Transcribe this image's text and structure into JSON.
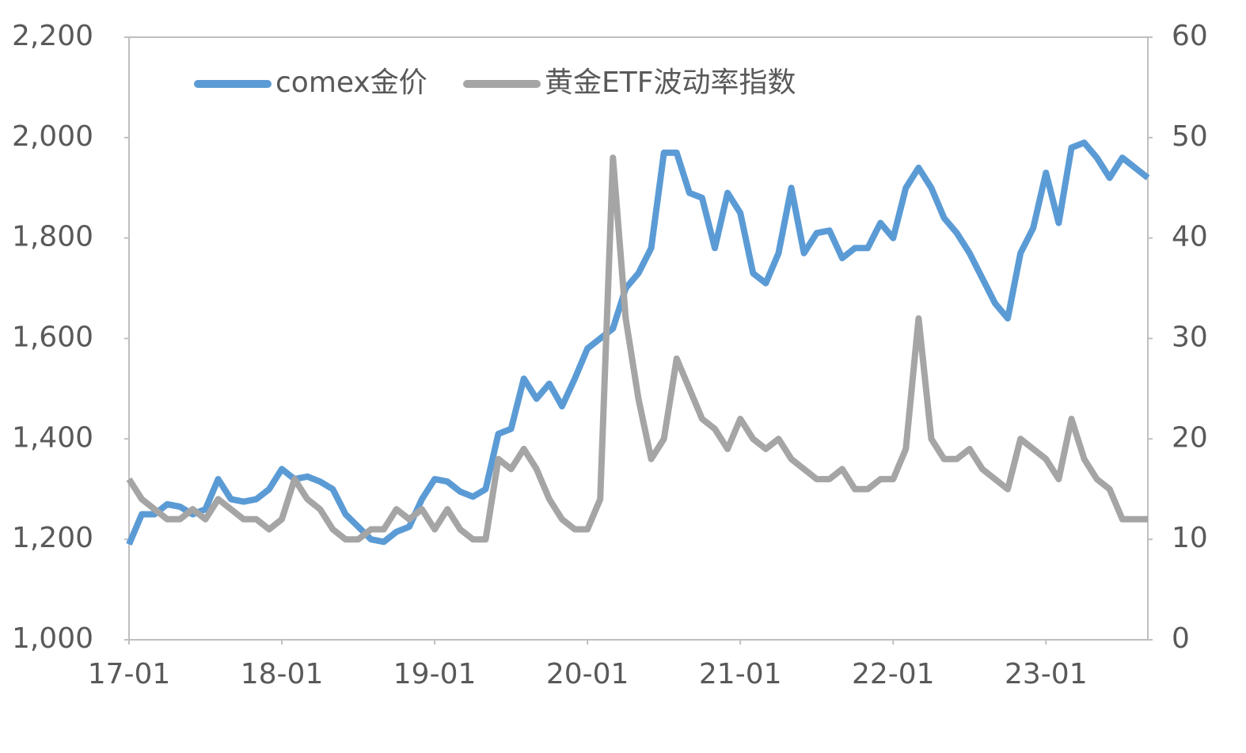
{
  "chart_data": {
    "type": "line",
    "categories": [
      "17-01",
      null,
      null,
      null,
      null,
      null,
      null,
      null,
      null,
      null,
      null,
      null,
      "18-01",
      null,
      null,
      null,
      null,
      null,
      null,
      null,
      null,
      null,
      null,
      null,
      "19-01",
      null,
      null,
      null,
      null,
      null,
      null,
      null,
      null,
      null,
      null,
      null,
      "20-01",
      null,
      null,
      null,
      null,
      null,
      null,
      null,
      null,
      null,
      null,
      null,
      "21-01",
      null,
      null,
      null,
      null,
      null,
      null,
      null,
      null,
      null,
      null,
      null,
      "22-01",
      null,
      null,
      null,
      null,
      null,
      null,
      null,
      null,
      null,
      null,
      null,
      "23-01",
      null,
      null,
      null,
      null,
      null,
      null,
      null,
      null
    ],
    "series": [
      {
        "name": "comex金价",
        "color": "#5b9bd5",
        "axis": "y",
        "values": [
          1190,
          1250,
          1250,
          1270,
          1265,
          1250,
          1260,
          1320,
          1280,
          1275,
          1280,
          1300,
          1340,
          1320,
          1325,
          1315,
          1300,
          1250,
          1225,
          1200,
          1195,
          1215,
          1225,
          1280,
          1320,
          1315,
          1295,
          1285,
          1300,
          1410,
          1420,
          1520,
          1480,
          1510,
          1465,
          1520,
          1580,
          1600,
          1620,
          1700,
          1730,
          1780,
          1970,
          1970,
          1890,
          1880,
          1780,
          1890,
          1850,
          1730,
          1710,
          1770,
          1900,
          1770,
          1810,
          1815,
          1760,
          1780,
          1780,
          1830,
          1800,
          1900,
          1940,
          1900,
          1840,
          1810,
          1770,
          1720,
          1670,
          1640,
          1770,
          1820,
          1930,
          1830,
          1980,
          1990,
          1960,
          1920,
          1960,
          1940,
          1920
        ]
      },
      {
        "name": "黄金ETF波动率指数",
        "color": "#a5a5a5",
        "axis": "y2",
        "values": [
          16,
          14,
          13,
          12,
          12,
          13,
          12,
          14,
          13,
          12,
          12,
          11,
          12,
          16,
          14,
          13,
          11,
          10,
          10,
          11,
          11,
          13,
          12,
          13,
          11,
          13,
          11,
          10,
          10,
          18,
          17,
          19,
          17,
          14,
          12,
          11,
          11,
          14,
          48,
          32,
          24,
          18,
          20,
          28,
          25,
          22,
          21,
          19,
          22,
          20,
          19,
          20,
          18,
          17,
          16,
          16,
          17,
          15,
          15,
          16,
          16,
          19,
          32,
          20,
          18,
          18,
          19,
          17,
          16,
          15,
          20,
          19,
          18,
          16,
          22,
          18,
          16,
          15,
          12,
          12,
          12
        ]
      }
    ],
    "ylim": [
      1000,
      2200
    ],
    "yticks": [
      {
        "value": 1000,
        "label": "1,000"
      },
      {
        "value": 1200,
        "label": "1,200"
      },
      {
        "value": 1400,
        "label": "1,400"
      },
      {
        "value": 1600,
        "label": "1,600"
      },
      {
        "value": 1800,
        "label": "1,800"
      },
      {
        "value": 2000,
        "label": "2,000"
      },
      {
        "value": 2200,
        "label": "2,200"
      }
    ],
    "y2lim": [
      0,
      60
    ],
    "y2ticks": [
      0,
      10,
      20,
      30,
      40,
      50,
      60
    ],
    "grid": false,
    "legend": "top-left"
  }
}
